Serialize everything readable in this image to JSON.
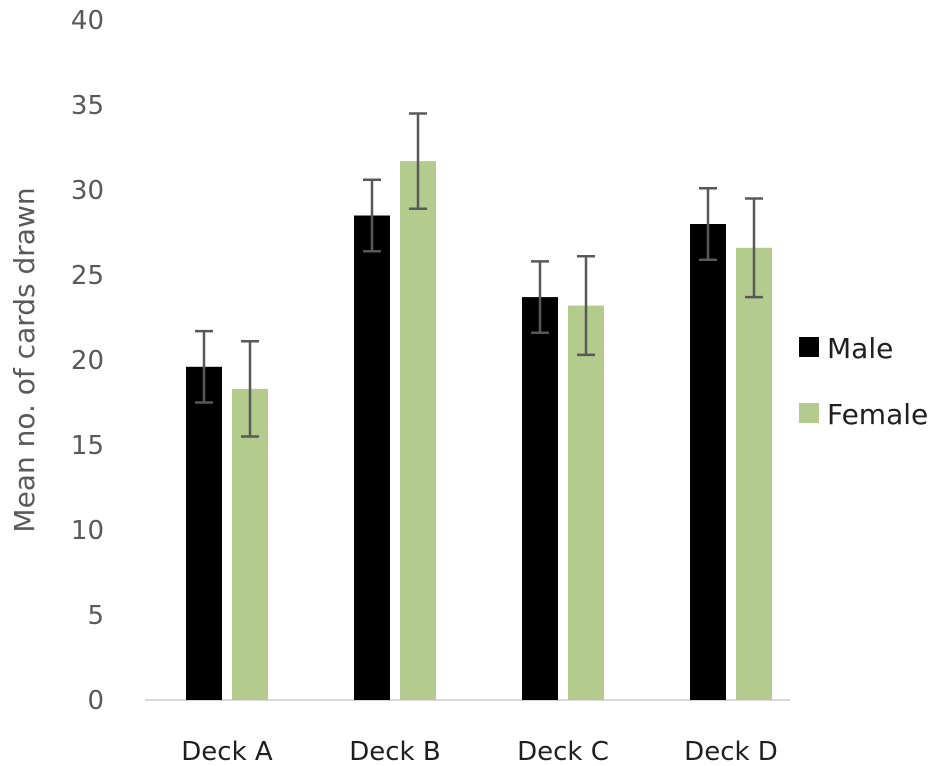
{
  "chart_data": {
    "type": "bar",
    "title": "",
    "xlabel": "",
    "ylabel": "Mean no. of cards drawn",
    "ylim": [
      0,
      40
    ],
    "yticks": [
      0,
      5,
      10,
      15,
      20,
      25,
      30,
      35,
      40
    ],
    "grid": false,
    "legend": "right",
    "categories": [
      "Deck A",
      "Deck B",
      "Deck C",
      "Deck D"
    ],
    "series": [
      {
        "name": "Male",
        "color": "#000000",
        "values": [
          19.6,
          28.5,
          23.7,
          28.0
        ],
        "errors": [
          2.1,
          2.1,
          2.1,
          2.1
        ]
      },
      {
        "name": "Female",
        "color": "#b3cc8e",
        "values": [
          18.3,
          31.7,
          23.2,
          26.6
        ],
        "errors": [
          2.8,
          2.8,
          2.9,
          2.9
        ]
      }
    ]
  }
}
